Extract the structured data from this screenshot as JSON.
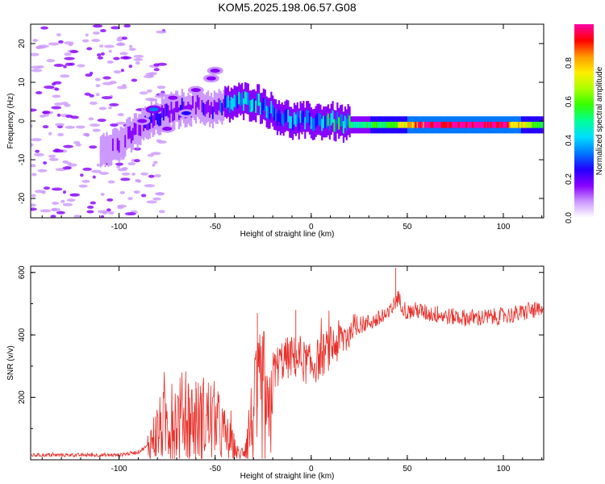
{
  "title": "KOM5.2025.198.06.57.G08",
  "colors": {
    "snr_line": "#e8302a",
    "colormap": [
      "#ffffff",
      "#cc99ff",
      "#8800ff",
      "#2200ff",
      "#0077ff",
      "#00ddff",
      "#00ff99",
      "#33ff00",
      "#aaff00",
      "#ffee00",
      "#ff9900",
      "#ff0000",
      "#ff00aa"
    ]
  },
  "chart_data": [
    {
      "type": "heatmap",
      "xlabel": "Height of straight line (km)",
      "ylabel": "Frequency (Hz)",
      "xlim": [
        -146,
        121
      ],
      "ylim": [
        -25,
        25
      ],
      "xticks": [
        -100,
        -50,
        0,
        50,
        100
      ],
      "yticks": [
        -20,
        -10,
        0,
        10,
        20
      ],
      "colorbar": {
        "label": "Normalized spectral amplitude",
        "range": [
          0,
          1
        ],
        "ticks": [
          "0.0",
          "0.2",
          "0.4",
          "0.6",
          "0.8"
        ]
      },
      "ridge": {
        "x": [
          -110,
          -100,
          -90,
          -80,
          -70,
          -60,
          -50,
          -40,
          -30,
          -25,
          -20,
          -10,
          0,
          10,
          20,
          40,
          60,
          80,
          100,
          121
        ],
        "freq_hz": [
          -7,
          -6,
          -2,
          1,
          3,
          4,
          3,
          5,
          5,
          4,
          2,
          0,
          0,
          0,
          -1,
          -1,
          -1,
          -1,
          -1,
          -1
        ],
        "amplitude": [
          0.05,
          0.08,
          0.12,
          0.18,
          0.15,
          0.12,
          0.15,
          0.35,
          0.4,
          0.3,
          0.25,
          0.3,
          0.25,
          0.4,
          0.45,
          0.5,
          0.95,
          0.95,
          0.9,
          0.45
        ]
      },
      "patches": [
        {
          "x": -50,
          "freq_hz": 13,
          "amplitude": 0.12
        },
        {
          "x": -52,
          "freq_hz": 11,
          "amplitude": 0.1
        },
        {
          "x": -60,
          "freq_hz": 8,
          "amplitude": 0.1
        },
        {
          "x": -72,
          "freq_hz": 6,
          "amplitude": 0.15
        },
        {
          "x": -82,
          "freq_hz": 3,
          "amplitude": 0.25
        },
        {
          "x": -88,
          "freq_hz": 0,
          "amplitude": 0.12
        },
        {
          "x": -75,
          "freq_hz": -2,
          "amplitude": 0.12
        },
        {
          "x": -65,
          "freq_hz": 2,
          "amplitude": 0.18
        }
      ]
    },
    {
      "type": "line",
      "xlabel": "Height of straight line (km)",
      "ylabel": "SNR (v/v)",
      "xlim": [
        -146,
        121
      ],
      "ylim": [
        0,
        620
      ],
      "xticks": [
        -100,
        -50,
        0,
        50,
        100
      ],
      "yticks": [
        200,
        400,
        600
      ],
      "series": [
        {
          "x": [
            -146,
            -140,
            -130,
            -120,
            -110,
            -100,
            -90,
            -85,
            -80,
            -75,
            -70,
            -65,
            -60,
            -55,
            -50,
            -45,
            -40,
            -37,
            -35,
            -30,
            -25,
            -22,
            -20,
            -15,
            -10,
            -5,
            0,
            5,
            10,
            15,
            20,
            25,
            30,
            35,
            40,
            45,
            50,
            55,
            60,
            70,
            80,
            90,
            100,
            110,
            115,
            121
          ],
          "y": [
            15,
            15,
            15,
            15,
            15,
            15,
            25,
            45,
            90,
            120,
            130,
            140,
            120,
            135,
            120,
            80,
            40,
            10,
            40,
            140,
            210,
            100,
            280,
            320,
            330,
            320,
            300,
            330,
            360,
            380,
            410,
            430,
            440,
            450,
            460,
            520,
            470,
            480,
            470,
            460,
            455,
            455,
            460,
            470,
            480,
            470
          ]
        }
      ],
      "spike_max": [
        {
          "x": -60,
          "y": 250
        },
        {
          "x": -28,
          "y": 470
        },
        {
          "x": -8,
          "y": 480
        },
        {
          "x": 44,
          "y": 615
        }
      ]
    }
  ]
}
